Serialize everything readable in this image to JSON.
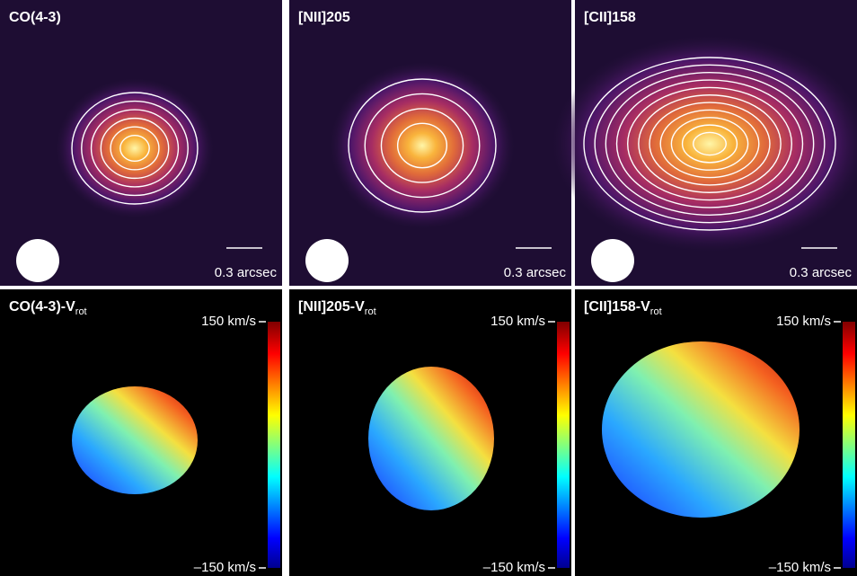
{
  "top_panels": [
    {
      "label": "CO(4-3)",
      "scale_bar": "0.3 arcsec"
    },
    {
      "label": "[NII]205",
      "scale_bar": "0.3 arcsec"
    },
    {
      "label": "[CII]158",
      "scale_bar": "0.3 arcsec"
    }
  ],
  "bottom_panels": [
    {
      "label": "CO(4-3)-V",
      "label_sub": "rot",
      "colorbar_max": "150 km/s",
      "colorbar_min": "–150 km/s"
    },
    {
      "label": "[NII]205-V",
      "label_sub": "rot",
      "colorbar_max": "150 km/s",
      "colorbar_min": "–150 km/s"
    },
    {
      "label": "[CII]158-V",
      "label_sub": "rot",
      "colorbar_max": "150 km/s",
      "colorbar_min": "–150 km/s"
    }
  ]
}
